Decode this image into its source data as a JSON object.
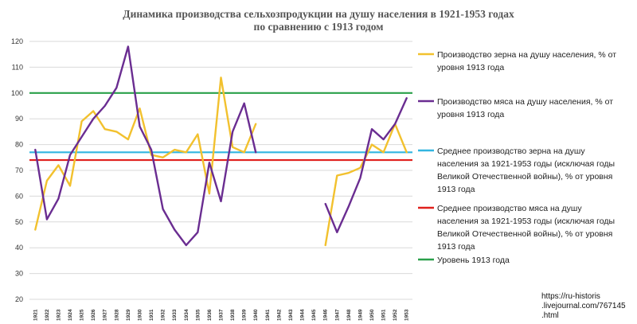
{
  "chart_data": {
    "type": "line",
    "title": "Динамика производства сельхозпродукции на душу населения в 1921-1953 годах",
    "subtitle": "по сравнению с 1913 годом",
    "xlabel": "",
    "ylabel": "",
    "ylim": [
      20,
      120
    ],
    "yticks": [
      20,
      30,
      40,
      50,
      60,
      70,
      80,
      90,
      100,
      110,
      120
    ],
    "x": [
      "1921",
      "1922",
      "1923",
      "1924",
      "1925",
      "1926",
      "1927",
      "1928",
      "1929",
      "1930",
      "1931",
      "1932",
      "1933",
      "1934",
      "1935",
      "1936",
      "1937",
      "1938",
      "1939",
      "1940",
      "1941",
      "1942",
      "1943",
      "1944",
      "1945",
      "1946",
      "1947",
      "1948",
      "1949",
      "1950",
      "1951",
      "1952",
      "1953"
    ],
    "grid": "horizontal",
    "legend_position": "right",
    "series": [
      {
        "name": "Производство зерна на душу населения, % от уровня 1913 года",
        "color": "#f2c12e",
        "values": [
          47,
          66,
          72,
          64,
          89,
          93,
          86,
          85,
          82,
          94,
          76,
          75,
          78,
          77,
          84,
          61,
          106,
          79,
          77,
          88,
          null,
          null,
          null,
          null,
          null,
          41,
          68,
          69,
          71,
          80,
          77,
          88,
          77
        ]
      },
      {
        "name": "Производство мяса на душу населения, % от уровня 1913 года",
        "color": "#6a2d91",
        "values": [
          78,
          51,
          59,
          76,
          83,
          90,
          95,
          102,
          118,
          87,
          78,
          55,
          47,
          41,
          46,
          73,
          58,
          85,
          96,
          77,
          null,
          null,
          null,
          null,
          null,
          57,
          46,
          56,
          67,
          86,
          82,
          88,
          98
        ]
      }
    ],
    "reference_lines": [
      {
        "name": "Среднее производство зерна на душу населения за 1921-1953 годы (исключая годы Великой Отечественной войны), % от уровня 1913 года",
        "value": 77,
        "color": "#33b5e0"
      },
      {
        "name": "Среднее производство мяса на душу населения за 1921-1953 годы (исключая годы Великой Отечественной войны), % от уровня 1913 года",
        "value": 74,
        "color": "#e0201c"
      },
      {
        "name": "Уровень 1913 года",
        "value": 100,
        "color": "#2aa04a"
      }
    ],
    "legend": [
      {
        "lines": [
          "Производство зерна на душу населения, % от",
          "уровня 1913 года"
        ],
        "color": "#f2c12e"
      },
      {
        "lines": [
          "Производство мяса на душу населения, % от",
          "уровня 1913 года"
        ],
        "color": "#6a2d91"
      },
      {
        "lines": [
          "Среднее производство зерна на душу",
          "населения за 1921-1953 годы (исключая годы",
          "Великой Отечественной войны), % от уровня",
          "1913 года"
        ],
        "color": "#33b5e0"
      },
      {
        "lines": [
          "Среднее производство мяса на душу",
          "населения за 1921-1953 годы (исключая годы",
          "Великой Отечественной войны), % от уровня",
          "1913 года"
        ],
        "color": "#e0201c"
      },
      {
        "lines": [
          "Уровень 1913 года"
        ],
        "color": "#2aa04a"
      }
    ],
    "source_note": [
      "https://ru-historis",
      ".livejournal.com/767145",
      ".html"
    ]
  }
}
